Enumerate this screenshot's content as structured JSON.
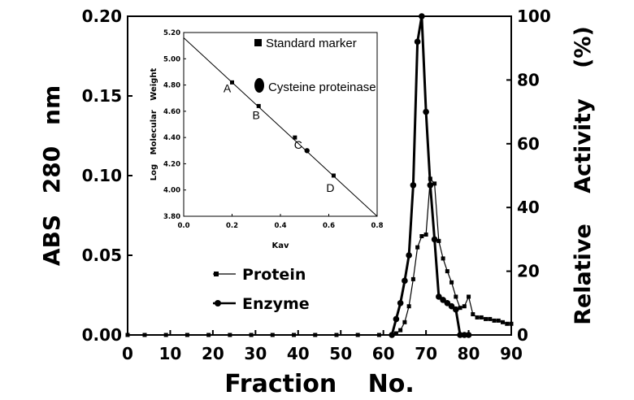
{
  "chart_data": [
    {
      "type": "line",
      "xlabel": "Fraction No.",
      "ylabel_left": "ABS 280 nm",
      "ylabel_right": "Relative Activity (%)",
      "xlim": [
        0,
        90
      ],
      "ylim_left": [
        0,
        0.2
      ],
      "ylim_right": [
        0,
        100
      ],
      "x_ticks": [
        "0",
        "10",
        "20",
        "30",
        "40",
        "50",
        "60",
        "70",
        "80",
        "90"
      ],
      "y_left_ticks": [
        "0.00",
        "0.05",
        "0.10",
        "0.15",
        "0.20"
      ],
      "y_right_ticks": [
        "0",
        "20",
        "40",
        "60",
        "80",
        "100"
      ],
      "legend": {
        "placement": "lower-left",
        "entries": [
          "Protein",
          "Enzyme"
        ]
      },
      "series": [
        {
          "name": "Protein",
          "axis": "left",
          "marker": "square",
          "x": [
            0,
            4,
            9,
            14,
            19,
            24,
            29,
            34,
            39,
            44,
            49,
            54,
            59,
            62,
            63,
            64,
            65,
            66,
            67,
            68,
            69,
            70,
            71,
            72,
            73,
            74,
            75,
            76,
            77,
            78,
            79,
            80,
            81,
            82,
            83,
            84,
            85,
            86,
            87,
            88,
            89,
            90
          ],
          "y": [
            0,
            0,
            0,
            0,
            0,
            0,
            0,
            0,
            0,
            0,
            0,
            0,
            0,
            0,
            0.001,
            0.003,
            0.008,
            0.018,
            0.035,
            0.055,
            0.062,
            0.063,
            0.098,
            0.095,
            0.059,
            0.048,
            0.04,
            0.033,
            0.024,
            0.017,
            0.018,
            0.024,
            0.013,
            0.011,
            0.011,
            0.01,
            0.01,
            0.009,
            0.009,
            0.008,
            0.007,
            0.007
          ]
        },
        {
          "name": "Enzyme",
          "axis": "right",
          "marker": "circle",
          "x": [
            62,
            63,
            64,
            65,
            66,
            67,
            68,
            69,
            70,
            71,
            72,
            73,
            74,
            75,
            76,
            77,
            78,
            79,
            80
          ],
          "y": [
            0,
            5,
            10,
            17,
            25,
            47,
            92,
            100,
            70,
            47,
            30,
            12,
            11,
            10,
            9,
            8,
            0,
            0,
            0
          ]
        }
      ]
    },
    {
      "type": "scatter",
      "xlabel": "Kav",
      "ylabel": "Log Molecular Weight",
      "xlim": [
        0,
        0.8
      ],
      "ylim": [
        3.8,
        5.2
      ],
      "x_ticks": [
        "0.0",
        "0.2",
        "0.4",
        "0.6",
        "0.8"
      ],
      "y_ticks": [
        "3.80",
        "4.00",
        "4.20",
        "4.40",
        "4.60",
        "4.80",
        "5.00",
        "5.20"
      ],
      "fit_line": {
        "x": [
          0,
          0.8
        ],
        "y": [
          5.16,
          3.8
        ]
      },
      "legend": {
        "placement": "top-right",
        "entries": [
          "Standard marker",
          "Cysteine proteinase"
        ]
      },
      "series": [
        {
          "name": "Standard marker",
          "marker": "square",
          "points": [
            {
              "label": "A",
              "x": 0.2,
              "y": 4.82
            },
            {
              "label": "B",
              "x": 0.31,
              "y": 4.64
            },
            {
              "label": "C",
              "x": 0.46,
              "y": 4.4
            },
            {
              "label": "D",
              "x": 0.62,
              "y": 4.11
            }
          ]
        },
        {
          "name": "Cysteine proteinase",
          "marker": "circle",
          "points": [
            {
              "x": 0.51,
              "y": 4.3
            }
          ]
        }
      ]
    }
  ]
}
